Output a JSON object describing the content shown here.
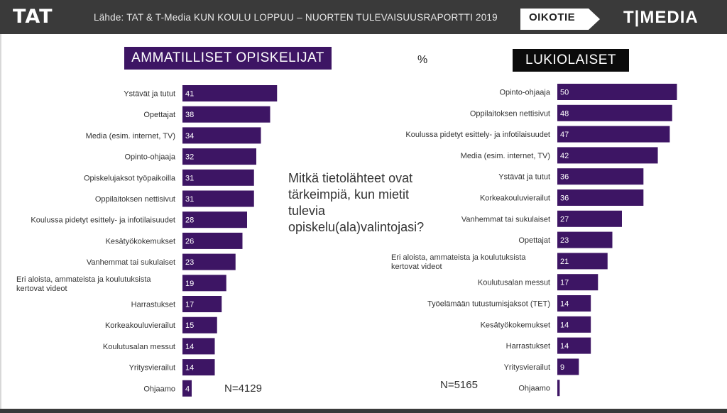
{
  "header": {
    "logo_left": "TAT",
    "source": "Lähde: TAT & T-Media KUN KOULU LOPPUU – NUORTEN TULEVAISUUSRAPORTTI 2019",
    "logo_oikotie": "OIKOTIE",
    "logo_tmedia": "T|MEDIA"
  },
  "unit_label": "%",
  "question": "Mitkä tietolähteet ovat tärkeimpiä, kun mietit tulevia opiskelu(ala)valintojasi?",
  "colors": {
    "bar": "#3d1564",
    "header_left": "#3d1564",
    "header_right": "#0b0b0b",
    "topbar": "#3a3a3a",
    "logo_accent": "#2fc45c"
  },
  "chart_data": [
    {
      "type": "bar",
      "orientation": "horizontal",
      "title": "AMMATILLISET OPISKELIJAT",
      "n_label": "N=4129",
      "categories": [
        "Ystävät ja tutut",
        "Opettajat",
        "Media (esim. internet, TV)",
        "Opinto-ohjaaja",
        "Opiskelujaksot työpaikoilla",
        "Oppilaitoksen nettisivut",
        "Koulussa pidetyt esittely- ja infotilaisuudet",
        "Kesätyökokemukset",
        "Vanhemmat tai sukulaiset",
        "Eri aloista, ammateista ja koulutuksista kertovat videot",
        "Harrastukset",
        "Korkeakouluvierailut",
        "Koulutusalan messut",
        "Yritysvierailut",
        "Ohjaamo"
      ],
      "values": [
        41,
        38,
        34,
        32,
        31,
        31,
        28,
        26,
        23,
        19,
        17,
        15,
        14,
        14,
        4
      ],
      "xlim": [
        0,
        50
      ]
    },
    {
      "type": "bar",
      "orientation": "horizontal",
      "title": "LUKIOLAISET",
      "n_label": "N=5165",
      "categories": [
        "Opinto-ohjaaja",
        "Oppilaitoksen nettisivut",
        "Koulussa pidetyt esittely- ja infotilaisuudet",
        "Media (esim. internet, TV)",
        "Ystävät ja tutut",
        "Korkeakouluvierailut",
        "Vanhemmat tai sukulaiset",
        "Opettajat",
        "Eri aloista, ammateista ja koulutuksista kertovat videot",
        "Koulutusalan messut",
        "Työelämään tutustumisjaksot (TET)",
        "Kesätyökokemukset",
        "Harrastukset",
        "Yritysvierailut",
        "Ohjaamo"
      ],
      "values": [
        50,
        48,
        47,
        42,
        36,
        36,
        27,
        23,
        21,
        17,
        14,
        14,
        14,
        9,
        1
      ],
      "xlim": [
        0,
        50
      ]
    }
  ]
}
